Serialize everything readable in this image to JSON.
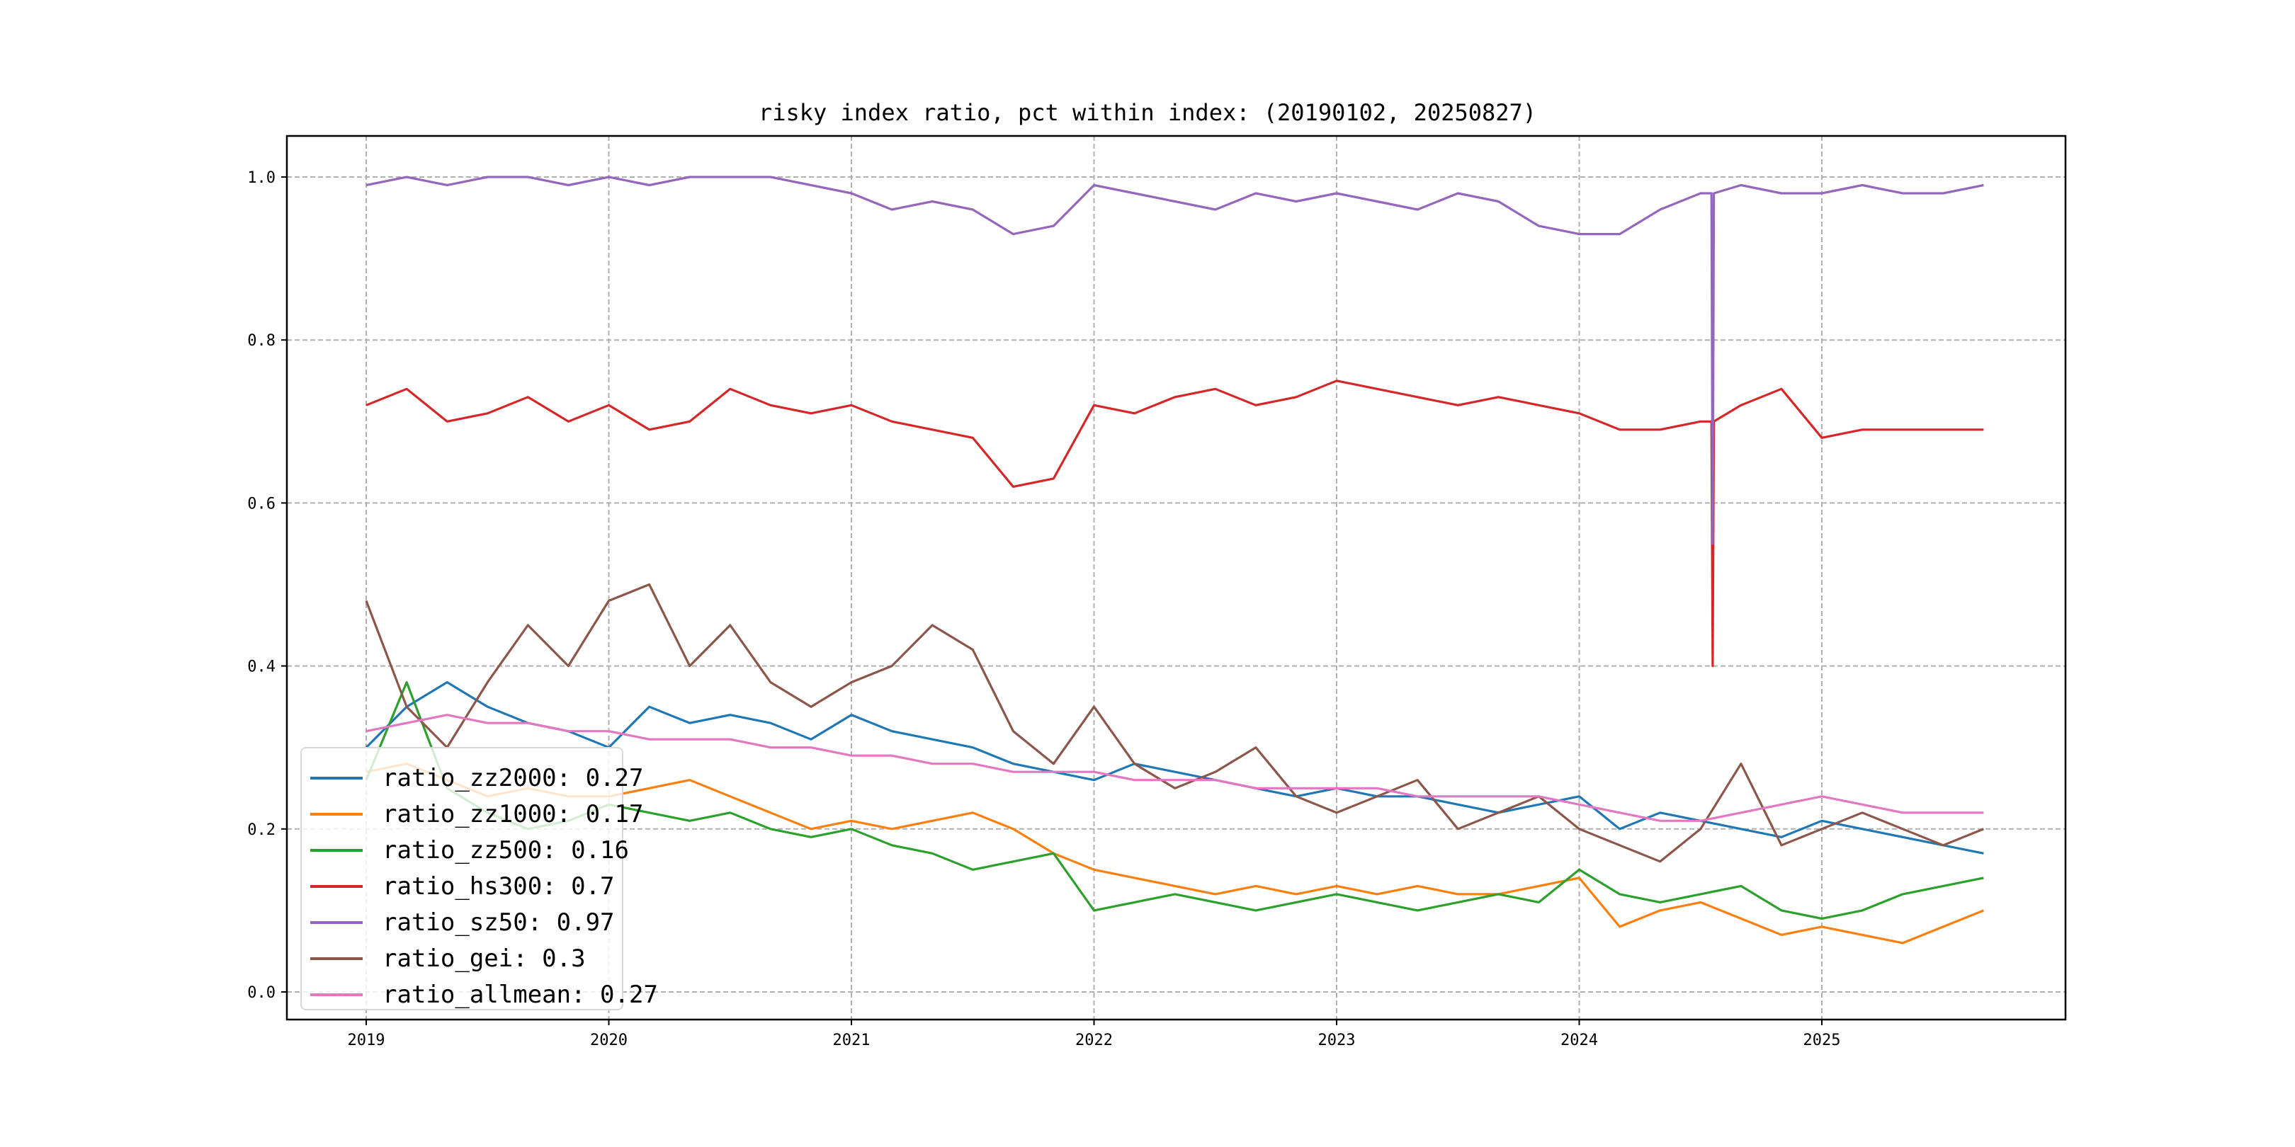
{
  "chart_data": {
    "type": "line",
    "title": "risky index ratio, pct within index: (20190102, 20250827)",
    "xlabel": "",
    "ylabel": "",
    "xlim": [
      2018.7,
      2026.0
    ],
    "ylim": [
      -0.035,
      1.05
    ],
    "xticks": [
      "2019",
      "2020",
      "2021",
      "2022",
      "2023",
      "2024",
      "2025"
    ],
    "xtick_values": [
      2019,
      2020,
      2021,
      2022,
      2023,
      2024,
      2025
    ],
    "yticks": [
      "0.0",
      "0.2",
      "0.4",
      "0.6",
      "0.8",
      "1.0"
    ],
    "ytick_values": [
      0,
      0.2,
      0.4,
      0.6,
      0.8,
      1.0
    ],
    "grid": true,
    "legend_position": "lower-left",
    "x_start": 2019.0,
    "x_step_years": 0.16667,
    "series": [
      {
        "name": "ratio_zz2000",
        "label": "ratio_zz2000: 0.27",
        "color": "#1f77b4",
        "values": [
          0.3,
          0.35,
          0.38,
          0.35,
          0.33,
          0.32,
          0.3,
          0.35,
          0.33,
          0.34,
          0.33,
          0.31,
          0.34,
          0.32,
          0.31,
          0.3,
          0.28,
          0.27,
          0.26,
          0.28,
          0.27,
          0.26,
          0.25,
          0.24,
          0.25,
          0.24,
          0.24,
          0.23,
          0.22,
          0.23,
          0.24,
          0.2,
          0.22,
          0.21,
          0.2,
          0.19,
          0.21,
          0.2,
          0.19,
          0.18,
          0.17
        ]
      },
      {
        "name": "ratio_zz1000",
        "label": "ratio_zz1000: 0.17",
        "color": "#ff7f0e",
        "values": [
          0.27,
          0.28,
          0.26,
          0.24,
          0.25,
          0.24,
          0.24,
          0.25,
          0.26,
          0.24,
          0.22,
          0.2,
          0.21,
          0.2,
          0.21,
          0.22,
          0.2,
          0.17,
          0.15,
          0.14,
          0.13,
          0.12,
          0.13,
          0.12,
          0.13,
          0.12,
          0.13,
          0.12,
          0.12,
          0.13,
          0.14,
          0.08,
          0.1,
          0.11,
          0.09,
          0.07,
          0.08,
          0.07,
          0.06,
          0.08,
          0.1
        ]
      },
      {
        "name": "ratio_zz500",
        "label": "ratio_zz500: 0.16",
        "color": "#2ca02c",
        "values": [
          0.26,
          0.38,
          0.25,
          0.22,
          0.2,
          0.21,
          0.23,
          0.22,
          0.21,
          0.22,
          0.2,
          0.19,
          0.2,
          0.18,
          0.17,
          0.15,
          0.16,
          0.17,
          0.1,
          0.11,
          0.12,
          0.11,
          0.1,
          0.11,
          0.12,
          0.11,
          0.1,
          0.11,
          0.12,
          0.11,
          0.15,
          0.12,
          0.11,
          0.12,
          0.13,
          0.1,
          0.09,
          0.1,
          0.12,
          0.13,
          0.14
        ]
      },
      {
        "name": "ratio_hs300",
        "label": "ratio_hs300: 0.7",
        "color": "#d62728",
        "values": [
          0.72,
          0.74,
          0.7,
          0.71,
          0.73,
          0.7,
          0.72,
          0.69,
          0.7,
          0.74,
          0.72,
          0.71,
          0.72,
          0.7,
          0.69,
          0.68,
          0.62,
          0.63,
          0.72,
          0.71,
          0.73,
          0.74,
          0.72,
          0.73,
          0.75,
          0.74,
          0.73,
          0.72,
          0.73,
          0.72,
          0.71,
          0.69,
          0.69,
          0.7,
          0.72,
          0.74,
          0.68,
          0.69,
          0.69,
          0.69,
          0.69
        ],
        "spike": {
          "x": 2024.55,
          "y": 0.4
        }
      },
      {
        "name": "ratio_sz50",
        "label": "ratio_sz50: 0.97",
        "color": "#9467bd",
        "values": [
          0.99,
          1.0,
          0.99,
          1.0,
          1.0,
          0.99,
          1.0,
          0.99,
          1.0,
          1.0,
          1.0,
          0.99,
          0.98,
          0.96,
          0.97,
          0.96,
          0.93,
          0.94,
          0.99,
          0.98,
          0.97,
          0.96,
          0.98,
          0.97,
          0.98,
          0.97,
          0.96,
          0.98,
          0.97,
          0.94,
          0.93,
          0.93,
          0.96,
          0.98,
          0.99,
          0.98,
          0.98,
          0.99,
          0.98,
          0.98,
          0.99
        ],
        "spike": {
          "x": 2024.55,
          "y": 0.55
        }
      },
      {
        "name": "ratio_gei",
        "label": "ratio_gei: 0.3",
        "color": "#8c564b",
        "values": [
          0.48,
          0.35,
          0.3,
          0.38,
          0.45,
          0.4,
          0.48,
          0.5,
          0.4,
          0.45,
          0.38,
          0.35,
          0.38,
          0.4,
          0.45,
          0.42,
          0.32,
          0.28,
          0.35,
          0.28,
          0.25,
          0.27,
          0.3,
          0.24,
          0.22,
          0.24,
          0.26,
          0.2,
          0.22,
          0.24,
          0.2,
          0.18,
          0.16,
          0.2,
          0.28,
          0.18,
          0.2,
          0.22,
          0.2,
          0.18,
          0.2
        ]
      },
      {
        "name": "ratio_allmean",
        "label": "ratio_allmean: 0.27",
        "color": "#e377c2",
        "values": [
          0.32,
          0.33,
          0.34,
          0.33,
          0.33,
          0.32,
          0.32,
          0.31,
          0.31,
          0.31,
          0.3,
          0.3,
          0.29,
          0.29,
          0.28,
          0.28,
          0.27,
          0.27,
          0.27,
          0.26,
          0.26,
          0.26,
          0.25,
          0.25,
          0.25,
          0.25,
          0.24,
          0.24,
          0.24,
          0.24,
          0.23,
          0.22,
          0.21,
          0.21,
          0.22,
          0.23,
          0.24,
          0.23,
          0.22,
          0.22,
          0.22
        ]
      }
    ]
  }
}
